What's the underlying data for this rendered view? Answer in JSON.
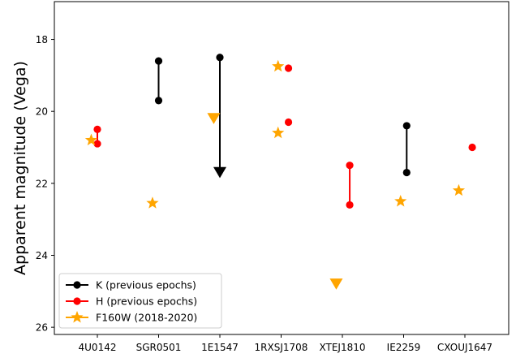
{
  "chart_data": {
    "type": "scatter",
    "ylabel": "Apparent magnitude (Vega)",
    "ylim": [
      26.2,
      16.95
    ],
    "y_inverted": true,
    "yticks": [
      18,
      20,
      22,
      24,
      26
    ],
    "categories": [
      "4U0142",
      "SGR0501",
      "1E1547",
      "1RXSJ1708",
      "XTEJ1810",
      "IE2259",
      "CXOUJ1647"
    ],
    "grid": false,
    "legend_position": "lower-left",
    "colors": {
      "K": "#000000",
      "H": "#ff0000",
      "F160W": "#ffa500"
    },
    "series": [
      {
        "name": "K (previous epochs)",
        "marker": "circle",
        "color": "#000000",
        "points": [
          {
            "category": "SGR0501",
            "offset": 0.0,
            "y": 18.6
          },
          {
            "category": "SGR0501",
            "offset": 0.0,
            "y": 19.7
          },
          {
            "category": "1E1547",
            "offset": 0.0,
            "y": 18.5
          },
          {
            "category": "IE2259",
            "offset": 0.05,
            "y": 20.4
          },
          {
            "category": "IE2259",
            "offset": 0.05,
            "y": 21.7
          }
        ],
        "segments": [
          {
            "category": "SGR0501",
            "offset": 0.0,
            "y": [
              18.6,
              19.7
            ]
          },
          {
            "category": "1E1547",
            "offset": 0.0,
            "y": [
              18.5,
              21.7
            ]
          },
          {
            "category": "IE2259",
            "offset": 0.05,
            "y": [
              20.4,
              21.7
            ]
          }
        ],
        "upper_limits": [
          {
            "category": "1E1547",
            "offset": 0.0,
            "y": 21.7
          }
        ]
      },
      {
        "name": "H (previous epochs)",
        "marker": "circle",
        "color": "#ff0000",
        "points": [
          {
            "category": "4U0142",
            "offset": 0.0,
            "y": 20.5
          },
          {
            "category": "4U0142",
            "offset": 0.0,
            "y": 20.9
          },
          {
            "category": "1RXSJ1708",
            "offset": 0.12,
            "y": 18.8
          },
          {
            "category": "1RXSJ1708",
            "offset": 0.12,
            "y": 20.3
          },
          {
            "category": "XTEJ1810",
            "offset": 0.12,
            "y": 21.5
          },
          {
            "category": "XTEJ1810",
            "offset": 0.12,
            "y": 22.6
          },
          {
            "category": "CXOUJ1647",
            "offset": 0.12,
            "y": 21.0
          }
        ],
        "segments": [
          {
            "category": "4U0142",
            "offset": 0.0,
            "y": [
              20.5,
              20.9
            ]
          },
          {
            "category": "XTEJ1810",
            "offset": 0.12,
            "y": [
              21.5,
              22.6
            ]
          }
        ]
      },
      {
        "name": "F160W (2018-2020)",
        "marker": "star",
        "color": "#ffa500",
        "points": [
          {
            "category": "4U0142",
            "offset": -0.1,
            "y": 20.8
          },
          {
            "category": "SGR0501",
            "offset": -0.1,
            "y": 22.55
          },
          {
            "category": "1RXSJ1708",
            "offset": -0.05,
            "y": 18.75
          },
          {
            "category": "1RXSJ1708",
            "offset": -0.05,
            "y": 20.6
          },
          {
            "category": "IE2259",
            "offset": -0.05,
            "y": 22.5
          },
          {
            "category": "CXOUJ1647",
            "offset": -0.1,
            "y": 22.2
          }
        ],
        "upper_limits": [
          {
            "category": "1E1547",
            "offset": -0.1,
            "y": 20.2
          },
          {
            "category": "XTEJ1810",
            "offset": -0.1,
            "y": 24.8
          }
        ]
      }
    ]
  }
}
